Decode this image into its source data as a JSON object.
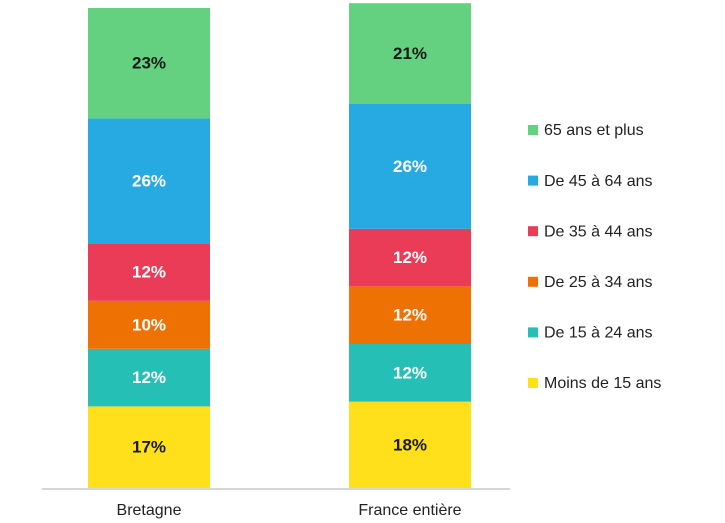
{
  "chart_data": {
    "type": "stacked_bar",
    "categories": [
      "Bretagne",
      "France entière"
    ],
    "ylim": [
      0,
      100
    ],
    "legend": "right",
    "series": [
      {
        "name": "Moins de 15 ans",
        "color": "#FFE01A",
        "values": [
          17,
          18
        ],
        "value_labels": [
          "17%",
          "18%"
        ]
      },
      {
        "name": "De 15 à 24 ans",
        "color": "#26BFB5",
        "values": [
          12,
          12
        ],
        "value_labels": [
          "12%",
          "12%"
        ]
      },
      {
        "name": "De 25 à 34 ans",
        "color": "#EE7203",
        "values": [
          10,
          12
        ],
        "value_labels": [
          "10%",
          "12%"
        ]
      },
      {
        "name": "De 35 à 44 ans",
        "color": "#EB3C57",
        "values": [
          12,
          12
        ],
        "value_labels": [
          "12%",
          "12%"
        ]
      },
      {
        "name": "De 45 à 64 ans",
        "color": "#27AAE1",
        "values": [
          26,
          26
        ],
        "value_labels": [
          "26%",
          "26%"
        ]
      },
      {
        "name": "65 ans et plus",
        "color": "#63D17F",
        "values": [
          23,
          21
        ],
        "value_labels": [
          "23%",
          "21%"
        ]
      }
    ]
  }
}
